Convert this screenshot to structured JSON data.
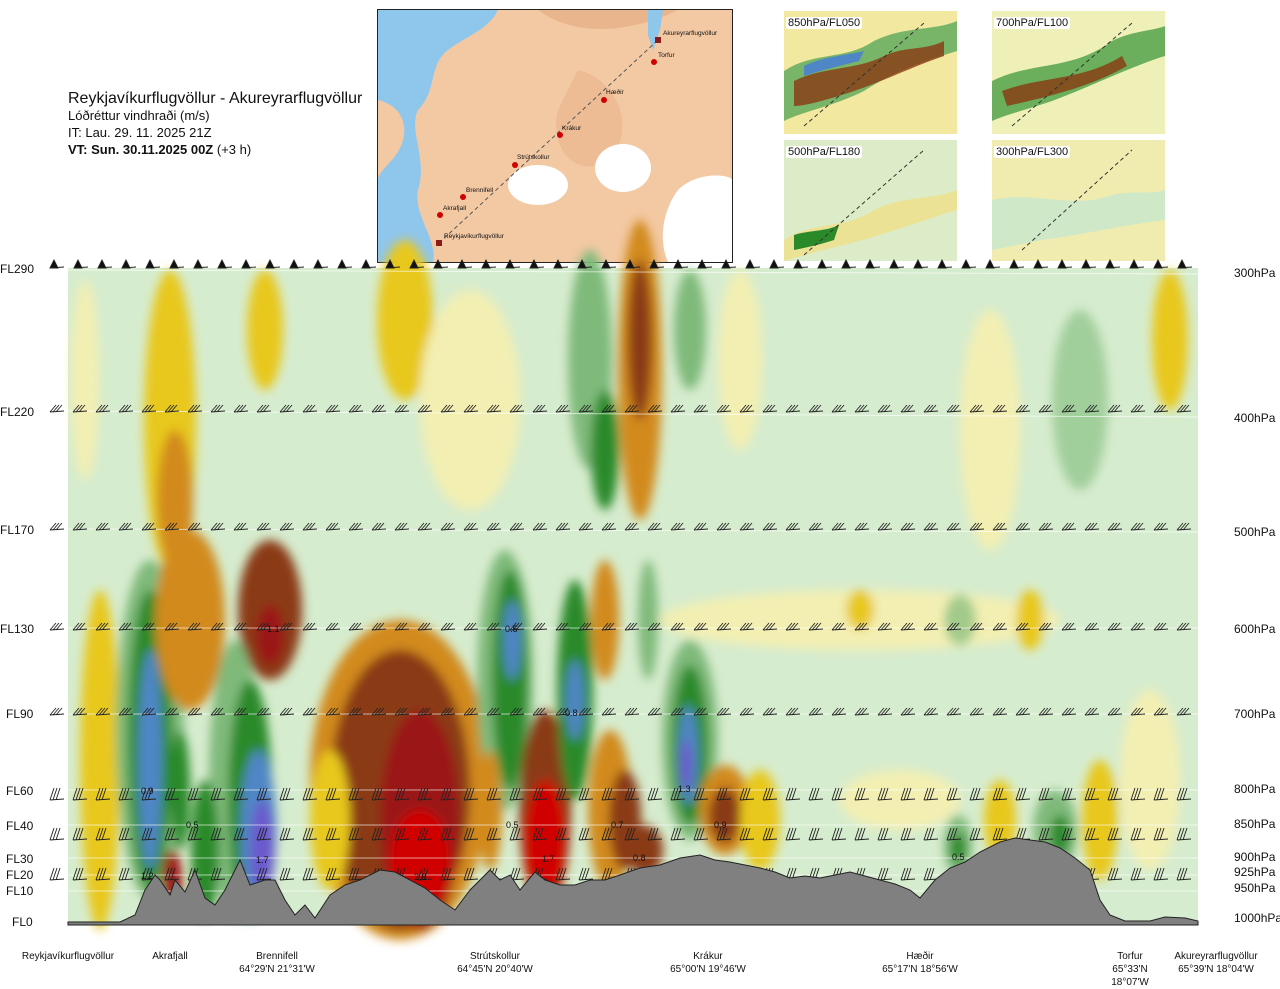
{
  "title": {
    "route": "Reykjavíkurflugvöllur - Akureyrarflugvöllur",
    "variable": "Lóðréttur vindhraði (m/s)",
    "it": "IT: Lau. 29. 11. 2025 21Z",
    "vt_bold": "VT: Sun. 30.11.2025 00Z",
    "vt_lead": "(+3 h)"
  },
  "map": {
    "places": [
      "Akureyrarflugvöllur",
      "Torfur",
      "Hæðir",
      "Krákur",
      "Strútskollur",
      "Brennifell",
      "Akrafjall",
      "Reykjavíkurflugvöllur"
    ]
  },
  "insets": [
    "850hPa/FL050",
    "700hPa/FL100",
    "500hPa/FL180",
    "300hPa/FL300"
  ],
  "flight_levels": [
    "FL290",
    "FL220",
    "FL170",
    "FL130",
    "FL90",
    "FL60",
    "FL40",
    "FL30",
    "FL20",
    "FL10",
    "FL0"
  ],
  "pressure_levels": [
    "300hPa",
    "400hPa",
    "500hPa",
    "600hPa",
    "700hPa",
    "800hPa",
    "850hPa",
    "900hPa",
    "925hPa",
    "950hPa",
    "1000hPa"
  ],
  "locations": [
    {
      "name": "Reykjavíkurflugvöllur",
      "coord": ""
    },
    {
      "name": "Akrafjall",
      "coord": ""
    },
    {
      "name": "Brennifell",
      "coord": "64°29'N 21°31'W"
    },
    {
      "name": "Strútskollur",
      "coord": "64°45'N 20°40'W"
    },
    {
      "name": "Krákur",
      "coord": "65°00'N 19°46'W"
    },
    {
      "name": "Hæðir",
      "coord": "65°17'N 18°56'W"
    },
    {
      "name": "Torfur",
      "coord": "65°33'N 18°07'W"
    },
    {
      "name": "Akureyrarflugvöllur",
      "coord": "65°39'N 18°04'W"
    }
  ],
  "colors": {
    "strong_up": "#9b1414",
    "up": "#8a3a12",
    "mod_up": "#d28a1c",
    "weak_up": "#e8c81a",
    "faint_up": "#f3efb2",
    "faint_down": "#cfe8c8",
    "weak_down": "#7fba7a",
    "down": "#2a8a2a",
    "strong_down": "#4f86c6",
    "extreme_down": "#6a5acd",
    "terrain": "#808080"
  },
  "chart_data": {
    "type": "heatmap",
    "title": "Lóðréttur vindhraði (m/s)",
    "x_locations": [
      "Reykjavíkurflugvöllur",
      "Akrafjall",
      "Brennifell",
      "Strútskollur",
      "Krákur",
      "Hæðir",
      "Torfur",
      "Akureyrarflugvöllur"
    ],
    "y_flight_levels": [
      "FL0",
      "FL10",
      "FL20",
      "FL30",
      "FL40",
      "FL60",
      "FL90",
      "FL130",
      "FL170",
      "FL220",
      "FL290"
    ],
    "y_pressure_levels": [
      "1000hPa",
      "950hPa",
      "925hPa",
      "900hPa",
      "850hPa",
      "800hPa",
      "700hPa",
      "600hPa",
      "500hPa",
      "400hPa",
      "300hPa"
    ],
    "annotations": [
      {
        "label": "0.9",
        "location": "Akrafjall",
        "level": "FL60"
      },
      {
        "label": "0.5",
        "location": "Akrafjall",
        "level": "FL40"
      },
      {
        "label": "1.2",
        "location": "Akrafjall",
        "level": "FL20"
      },
      {
        "label": "1.1",
        "location": "Brennifell",
        "level": "FL130"
      },
      {
        "label": "1.7",
        "location": "Brennifell",
        "level": "FL30"
      },
      {
        "label": "2.8",
        "location": "Brennifell",
        "level": "FL20"
      },
      {
        "label": "0.6",
        "location": "Strútskollur",
        "level": "FL130"
      },
      {
        "label": "0.8",
        "location": "Strútskollur",
        "level": "FL90"
      },
      {
        "label": "0.5",
        "location": "Strútskollur",
        "level": "FL40"
      },
      {
        "label": "1.7",
        "location": "Strútskollur",
        "level": "FL30"
      },
      {
        "label": "0.7",
        "location": "Krákur",
        "level": "FL40"
      },
      {
        "label": "0.8",
        "location": "Krákur",
        "level": "FL30"
      },
      {
        "label": "1.3",
        "location": "Krákur",
        "level": "FL60"
      },
      {
        "label": "0.9",
        "location": "Krákur",
        "level": "FL40"
      },
      {
        "label": "0.5",
        "location": "Hæðir",
        "level": "FL30"
      }
    ]
  }
}
